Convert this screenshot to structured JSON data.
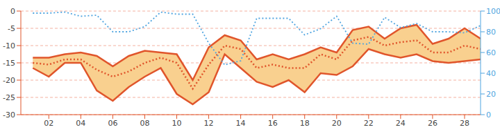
{
  "chart_data": {
    "type": "range",
    "color": "#f9d08f",
    "grid": true,
    "tick_labels": true,
    "x": [
      1,
      2,
      3,
      4,
      5,
      6,
      7,
      8,
      9,
      10,
      11,
      12,
      13,
      14,
      15,
      16,
      17,
      18,
      19,
      20,
      21,
      22,
      23,
      24,
      25,
      26,
      27,
      28,
      29
    ],
    "xlim": [
      0.25,
      29
    ],
    "xticks": [
      {
        "value": 2,
        "label": "02"
      },
      {
        "value": 4,
        "label": "04"
      },
      {
        "value": 6,
        "label": "06"
      },
      {
        "value": 8,
        "label": "08"
      },
      {
        "value": 10,
        "label": "10"
      },
      {
        "value": 12,
        "label": "12"
      },
      {
        "value": 14,
        "label": "14"
      },
      {
        "value": 16,
        "label": "16"
      },
      {
        "value": 18,
        "label": "18"
      },
      {
        "value": 20,
        "label": "20"
      },
      {
        "value": 22,
        "label": "22"
      },
      {
        "value": 24,
        "label": "24"
      },
      {
        "value": 26,
        "label": "26"
      },
      {
        "value": 28,
        "label": "28"
      }
    ],
    "ylim": [
      -30,
      0
    ],
    "yticks": [
      -30,
      -25,
      -20,
      -15,
      -10,
      -5,
      0
    ],
    "y2lim": [
      0,
      100
    ],
    "y2ticks": [
      0,
      20,
      40,
      60,
      80,
      100
    ],
    "series": [
      {
        "type": "line",
        "color": "#e0552b",
        "line_style": "solid",
        "values": [
          -13.5,
          -13.5,
          -12.5,
          -12,
          -13,
          -16,
          -13,
          -11.5,
          -12,
          -12.5,
          -20,
          -10.5,
          -7,
          -8.5,
          -14,
          -12.5,
          -14,
          -12.5,
          -10.5,
          -12,
          -5.5,
          -4.5,
          -8,
          -5,
          -4,
          -9.5,
          -8,
          -5,
          -8
        ]
      },
      {
        "type": "line",
        "color": "#e0552b",
        "line_style": "solid",
        "values": [
          -16.5,
          -19,
          -15,
          -15,
          -23,
          -26,
          -22,
          -19,
          -16.5,
          -24,
          -27,
          -23.5,
          -12.5,
          -16.5,
          -20.5,
          -22,
          -20,
          -23.5,
          -18,
          -18.5,
          -16,
          -11,
          -12.5,
          -13.5,
          -12.5,
          -14.5,
          -15,
          -14.5,
          -14
        ]
      },
      {
        "type": "line",
        "color": "#e0552b",
        "line_style": "dotted",
        "values": [
          -15,
          -15.5,
          -14,
          -14,
          -17,
          -19,
          -17.5,
          -15,
          -13.5,
          -15,
          -22.5,
          -15.5,
          -10,
          -11,
          -16.5,
          -15.5,
          -16.5,
          -16.5,
          -12.5,
          -14,
          -8.5,
          -7.5,
          -10,
          -9,
          -8.5,
          -12,
          -12,
          -10,
          -11
        ]
      },
      {
        "type": "line",
        "color": "#4ea4e0",
        "line_style": "dotted",
        "axis": "y2",
        "values": [
          98,
          98,
          99,
          95,
          96,
          80,
          80,
          85,
          99,
          97,
          97,
          69,
          48,
          52,
          93,
          93,
          93,
          77,
          83,
          95,
          69,
          68,
          94,
          84,
          88,
          80,
          80,
          79,
          86
        ]
      }
    ]
  }
}
